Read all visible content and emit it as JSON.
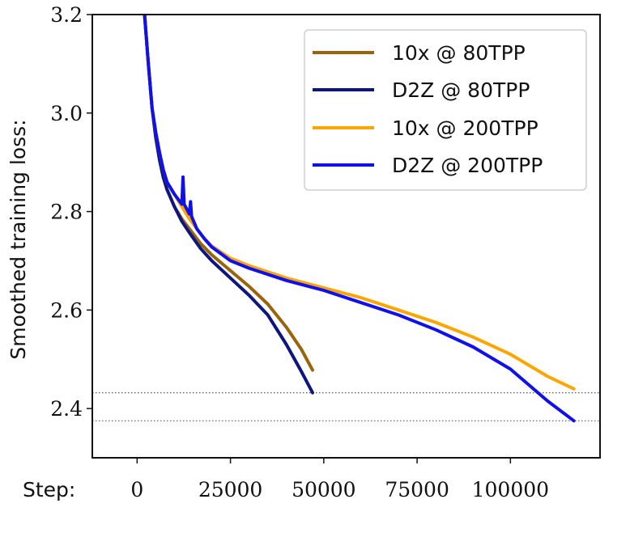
{
  "chart_data": {
    "type": "line",
    "title": "",
    "ylabel": "Smoothed training loss:",
    "xlabel": "Step:",
    "xlim": [
      -12000,
      124000
    ],
    "ylim": [
      2.3,
      3.2
    ],
    "xticks": [
      0,
      25000,
      50000,
      75000,
      100000
    ],
    "xtick_labels": [
      "0",
      "25000",
      "50000",
      "75000",
      "100000"
    ],
    "yticks": [
      2.4,
      2.6,
      2.8,
      3.0,
      3.2
    ],
    "ytick_labels": [
      "2.4",
      "2.6",
      "2.8",
      "3.0",
      "3.2"
    ],
    "grid": false,
    "legend_position": "top-right",
    "reference_lines": [
      2.432,
      2.375
    ],
    "series": [
      {
        "name": "10x @ 80TPP",
        "color": "#9a640d",
        "x": [
          2000,
          3000,
          4000,
          5000,
          6000,
          7000,
          8000,
          10000,
          12000,
          14000,
          17000,
          20000,
          25000,
          30000,
          35000,
          40000,
          44000,
          47000
        ],
        "y": [
          3.2,
          3.1,
          3.01,
          2.95,
          2.905,
          2.87,
          2.845,
          2.81,
          2.785,
          2.765,
          2.735,
          2.712,
          2.68,
          2.648,
          2.612,
          2.565,
          2.52,
          2.478
        ]
      },
      {
        "name": "D2Z @ 80TPP",
        "color": "#0d1580",
        "x": [
          2000,
          3000,
          4000,
          5000,
          6000,
          7000,
          8000,
          10000,
          12000,
          14000,
          17000,
          20000,
          25000,
          30000,
          35000,
          40000,
          44000,
          47000
        ],
        "y": [
          3.2,
          3.1,
          3.01,
          2.95,
          2.905,
          2.87,
          2.845,
          2.81,
          2.78,
          2.757,
          2.725,
          2.7,
          2.665,
          2.63,
          2.59,
          2.53,
          2.475,
          2.432
        ]
      },
      {
        "name": "10x @ 200TPP",
        "color": "#ffa500",
        "x": [
          2000,
          3000,
          4000,
          5000,
          6000,
          7000,
          8000,
          10000,
          12000,
          14000,
          16000,
          18000,
          20000,
          25000,
          30000,
          40000,
          50000,
          60000,
          70000,
          80000,
          90000,
          100000,
          110000,
          117000
        ],
        "y": [
          3.2,
          3.1,
          3.01,
          2.96,
          2.92,
          2.885,
          2.86,
          2.835,
          2.81,
          2.785,
          2.765,
          2.745,
          2.73,
          2.705,
          2.69,
          2.665,
          2.645,
          2.625,
          2.6,
          2.575,
          2.545,
          2.51,
          2.465,
          2.44
        ]
      },
      {
        "name": "D2Z @ 200TPP",
        "color": "#1010ee",
        "x": [
          2000,
          3000,
          4000,
          5000,
          6000,
          7000,
          8000,
          10000,
          12000,
          12300,
          12600,
          14000,
          14300,
          14600,
          16000,
          18000,
          20000,
          25000,
          30000,
          40000,
          50000,
          60000,
          70000,
          80000,
          90000,
          100000,
          110000,
          117000
        ],
        "y": [
          3.2,
          3.1,
          3.01,
          2.96,
          2.92,
          2.885,
          2.86,
          2.835,
          2.815,
          2.87,
          2.815,
          2.795,
          2.82,
          2.79,
          2.765,
          2.745,
          2.728,
          2.7,
          2.685,
          2.66,
          2.64,
          2.615,
          2.59,
          2.56,
          2.525,
          2.48,
          2.415,
          2.375
        ]
      }
    ]
  }
}
